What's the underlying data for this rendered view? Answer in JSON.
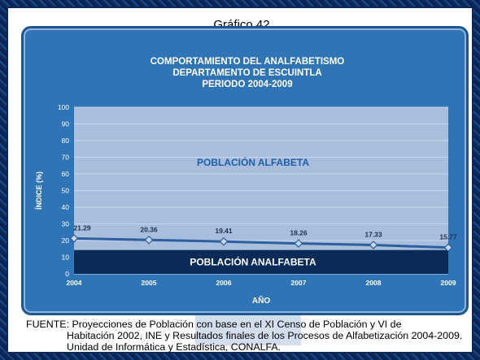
{
  "slide_title": "Gráfico 42",
  "chart_data": {
    "type": "line",
    "title": "COMPORTAMIENTO DEL ANALFABETISMO",
    "subtitle": "DEPARTAMENTO DE ESCUINTLA",
    "subtitle2": "PERIODO 2004-2009",
    "xlabel": "AÑO",
    "ylabel": "ÍNDICE (%)",
    "ylim": [
      0,
      100
    ],
    "yticks": [
      "0",
      "10",
      "20",
      "30",
      "40",
      "50",
      "60",
      "70",
      "80",
      "90",
      "100"
    ],
    "categories": [
      "2004",
      "2005",
      "2006",
      "2007",
      "2008",
      "2009"
    ],
    "values": [
      21.29,
      20.36,
      19.41,
      18.26,
      17.33,
      15.77
    ],
    "value_labels": [
      "21.29",
      "20.36",
      "19.41",
      "18.26",
      "17.33",
      "15.77"
    ],
    "area_upper_label": "POBLACIÓN ALFABETA",
    "area_lower_label": "POBLACIÓN ANALFABETA",
    "grid": true,
    "colors": {
      "panel": "#2f74b5",
      "plot": "#a9bedc",
      "line": "#2c5f9e",
      "lower_band": "#0a2a57",
      "text_light": "#ffffff",
      "text_dark": "#1f5fa8"
    }
  },
  "footnote": {
    "line1": "FUENTE: Proyecciones de Población con base en el XI Censo de Población y VI de",
    "line2": "Habitación 2002, INE y Resultados finales de los Procesos de Alfabetización 2004-2009.",
    "line3": "Unidad de Informática y Estadística, CONALFA."
  }
}
